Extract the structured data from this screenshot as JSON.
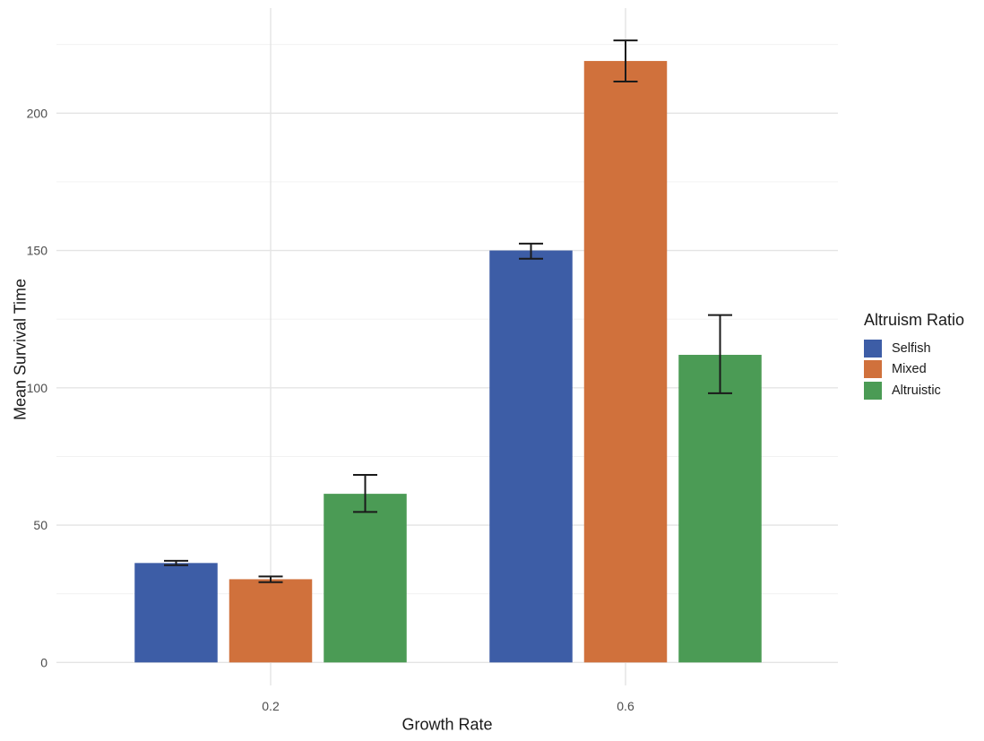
{
  "page": {
    "background": "#FFFFFF"
  },
  "chart_data": {
    "type": "bar",
    "title": "",
    "xlabel": "Growth Rate",
    "ylabel": "Mean Survival Time",
    "legend_title": "Altruism Ratio",
    "legend_position": "right",
    "categories": [
      "0.2",
      "0.6"
    ],
    "series": [
      {
        "name": "Selfish",
        "color": "#3D5DA6",
        "values": [
          36.2,
          150
        ],
        "error_low": [
          35.4,
          147
        ],
        "error_high": [
          37.0,
          152.5
        ]
      },
      {
        "name": "Mixed",
        "color": "#D0713C",
        "values": [
          30.3,
          219
        ],
        "error_low": [
          29.2,
          211.5
        ],
        "error_high": [
          31.3,
          226.5
        ]
      },
      {
        "name": "Altruistic",
        "color": "#4B9B55",
        "values": [
          61.4,
          112
        ],
        "error_low": [
          54.8,
          98
        ],
        "error_high": [
          68.3,
          126.5
        ]
      }
    ],
    "ylim": [
      0,
      238
    ],
    "yticks": [
      0,
      50,
      100,
      150,
      200
    ],
    "yticks_minor": [
      25,
      75,
      125,
      175,
      225
    ],
    "grid": "horizontal major+minor gridlines; vertical major gridline at each category center",
    "error_bars": true
  },
  "style": {
    "grid_major": "#E4E4E4",
    "grid_minor": "#F0F0F0",
    "tick_text": "#4D4D4D",
    "title_text": "#1A1A1A",
    "error_bar": "#1A1A1A",
    "background": "#FFFFFF"
  }
}
